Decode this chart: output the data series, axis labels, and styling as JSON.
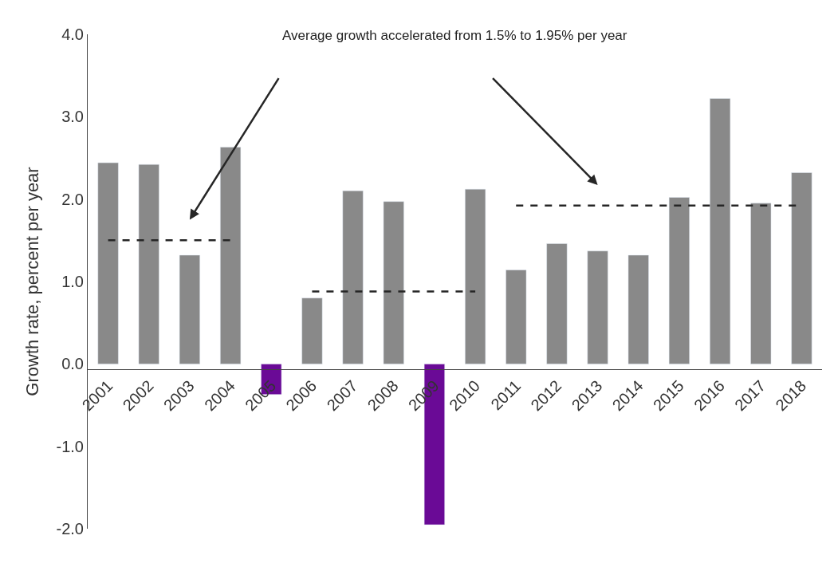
{
  "chart_data": {
    "type": "bar",
    "ylabel": "Growth rate, percent per year",
    "categories": [
      "2001",
      "2002",
      "2003",
      "2004",
      "2005",
      "2006",
      "2007",
      "2008",
      "2009",
      "2010",
      "2011",
      "2012",
      "2013",
      "2014",
      "2015",
      "2016",
      "2017",
      "2018"
    ],
    "series": [
      {
        "values": [
          2.44,
          2.42,
          1.32,
          2.63,
          -0.37,
          0.8,
          2.1,
          1.97,
          -1.95,
          2.12,
          1.14,
          1.46,
          1.37,
          1.32,
          2.02,
          3.22,
          1.95,
          2.32
        ],
        "colors": [
          "#898989",
          "#898989",
          "#898989",
          "#898989",
          "#6a0a96",
          "#898989",
          "#898989",
          "#898989",
          "#6a0a96",
          "#898989",
          "#898989",
          "#898989",
          "#898989",
          "#898989",
          "#898989",
          "#898989",
          "#898989",
          "#898989"
        ]
      },
      {
        "type": "line",
        "color": "#262626",
        "line_style": "dashed",
        "values": [
          1.5,
          1.5,
          1.5,
          1.5,
          null,
          null,
          null,
          null,
          null,
          null,
          null,
          null,
          null,
          null,
          null,
          null,
          null,
          null
        ]
      },
      {
        "type": "line",
        "color": "#262626",
        "line_style": "dashed",
        "values": [
          null,
          null,
          null,
          null,
          null,
          0.88,
          0.88,
          0.88,
          0.88,
          0.88,
          null,
          null,
          null,
          null,
          null,
          null,
          null,
          null
        ]
      },
      {
        "type": "line",
        "color": "#262626",
        "line_style": "dashed",
        "values": [
          null,
          null,
          null,
          null,
          null,
          null,
          null,
          null,
          null,
          null,
          1.92,
          1.92,
          1.92,
          1.92,
          1.92,
          1.92,
          1.92,
          1.92
        ]
      }
    ],
    "ylim": [
      -2,
      4
    ],
    "yticks": [
      {
        "value": -2,
        "label": "-2.0"
      },
      {
        "value": -1,
        "label": "-1.0"
      },
      {
        "value": 0,
        "label": "0.0"
      },
      {
        "value": 1,
        "label": "1.0"
      },
      {
        "value": 2,
        "label": "2.0"
      },
      {
        "value": 3,
        "label": "3.0"
      },
      {
        "value": 4,
        "label": "4.0"
      }
    ],
    "annotations": [
      "Average growth accelerated from 1.5% to 1.95% per year"
    ]
  }
}
